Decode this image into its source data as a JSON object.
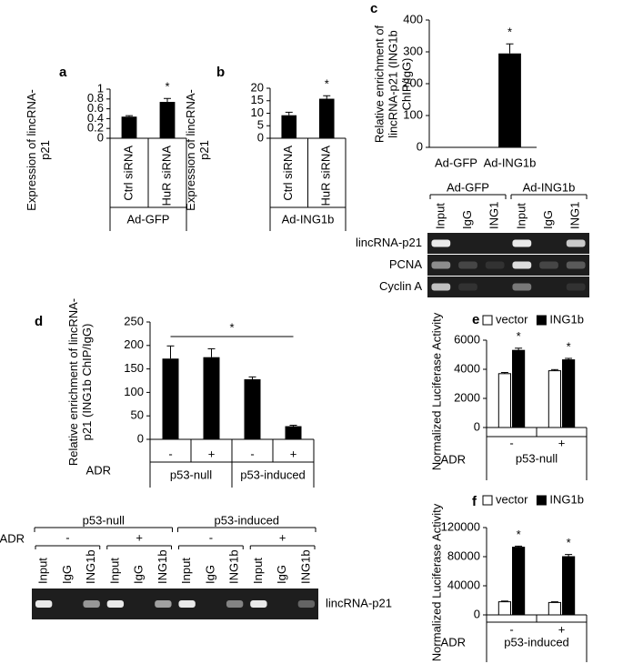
{
  "chart_data": [
    {
      "panel": "a",
      "type": "bar",
      "ylabel": "Expression of lincRNA-p21",
      "categories": [
        "Ctrl siRNA",
        "HuR siRNA"
      ],
      "values": [
        0.44,
        0.74
      ],
      "errors": [
        0.02,
        0.07
      ],
      "color": "#000000",
      "ylim": [
        0,
        1
      ],
      "yticks": [
        0,
        0.2,
        0.4,
        0.6,
        0.8,
        1
      ],
      "group_labels": [
        "Ad-GFP"
      ],
      "annotations": [
        {
          "text": "*",
          "category": "HuR siRNA"
        }
      ]
    },
    {
      "panel": "b",
      "type": "bar",
      "ylabel": "Expression of lincRNA-p21",
      "categories": [
        "Ctrl siRNA",
        "HuR siRNA"
      ],
      "values": [
        9.2,
        15.8
      ],
      "errors": [
        1.2,
        1.2
      ],
      "color": "#000000",
      "ylim": [
        0,
        20
      ],
      "yticks": [
        0,
        5,
        10,
        15,
        20
      ],
      "group_labels": [
        "Ad-ING1b"
      ],
      "annotations": [
        {
          "text": "*",
          "category": "HuR siRNA"
        }
      ]
    },
    {
      "panel": "c",
      "type": "bar",
      "ylabel": "Relative enrichment of lincRNA-p21 (ING1b ChIP/IgG)",
      "categories": [
        "Ad-GFP",
        "Ad-ING1b"
      ],
      "values": [
        0,
        295
      ],
      "errors": [
        0,
        30
      ],
      "color": "#000000",
      "ylim": [
        0,
        400
      ],
      "yticks": [
        0,
        100,
        200,
        300,
        400
      ],
      "annotations": [
        {
          "text": "*",
          "category": "Ad-ING1b"
        }
      ]
    },
    {
      "panel": "d",
      "type": "bar",
      "ylabel": "Relative enrichment of lincRNA-p21 (ING1b ChIP/IgG)",
      "categories": [
        "-",
        "+",
        "-",
        "+"
      ],
      "x_label": "ADR",
      "values": [
        172,
        175,
        128,
        28
      ],
      "errors": [
        27,
        18,
        5,
        2
      ],
      "color": "#000000",
      "ylim": [
        0,
        250
      ],
      "yticks": [
        0,
        50,
        100,
        150,
        200,
        250
      ],
      "group_labels": [
        "p53-null",
        "p53-induced"
      ],
      "annotations": [
        {
          "text": "*"
        }
      ]
    },
    {
      "panel": "e",
      "type": "bar",
      "ylabel": "Normalized Luciferase Activity",
      "categories": [
        "-",
        "+"
      ],
      "x_label": "ADR",
      "series": [
        {
          "name": "vector",
          "color": "#ffffff",
          "values": [
            3700,
            3900
          ],
          "errors": [
            80,
            80
          ]
        },
        {
          "name": "ING1b",
          "color": "#000000",
          "values": [
            5300,
            4650
          ],
          "errors": [
            150,
            100
          ]
        }
      ],
      "ylim": [
        0,
        6000
      ],
      "yticks": [
        0,
        2000,
        4000,
        6000
      ],
      "group_labels": [
        "p53-null"
      ],
      "annotations": [
        {
          "text": "*",
          "category": "-",
          "series": "ING1b"
        },
        {
          "text": "*",
          "category": "+",
          "series": "ING1b"
        }
      ]
    },
    {
      "panel": "f",
      "type": "bar",
      "ylabel": "Normalized Luciferase Activity",
      "categories": [
        "-",
        "+"
      ],
      "x_label": "ADR",
      "series": [
        {
          "name": "vector",
          "color": "#ffffff",
          "values": [
            18000,
            17000
          ],
          "errors": [
            1000,
            1000
          ]
        },
        {
          "name": "ING1b",
          "color": "#000000",
          "values": [
            93000,
            80000
          ],
          "errors": [
            1500,
            3000
          ]
        }
      ],
      "ylim": [
        0,
        120000
      ],
      "yticks": [
        0,
        40000,
        80000,
        120000
      ],
      "group_labels": [
        "p53-induced"
      ],
      "annotations": [
        {
          "text": "*",
          "category": "-",
          "series": "ING1b"
        },
        {
          "text": "*",
          "category": "+",
          "series": "ING1b"
        }
      ]
    }
  ],
  "gels": [
    {
      "groups": [
        "Ad-GFP",
        "Ad-ING1b"
      ],
      "lanes": [
        "Input",
        "IgG",
        "ING1",
        "Input",
        "IgG",
        "ING1"
      ],
      "rows": [
        "lincRNA-p21",
        "PCNA",
        "Cyclin A"
      ]
    },
    {
      "groups": [
        "p53-null",
        "p53-induced"
      ],
      "treatment_label": "ADR",
      "treatments": [
        "-",
        "+",
        "-",
        "+"
      ],
      "lanes": [
        "Input",
        "IgG",
        "ING1b",
        "Input",
        "IgG",
        "ING1b",
        "Input",
        "IgG",
        "ING1b",
        "Input",
        "IgG",
        "ING1b"
      ],
      "rows": [
        "lincRNA-p21"
      ]
    }
  ]
}
